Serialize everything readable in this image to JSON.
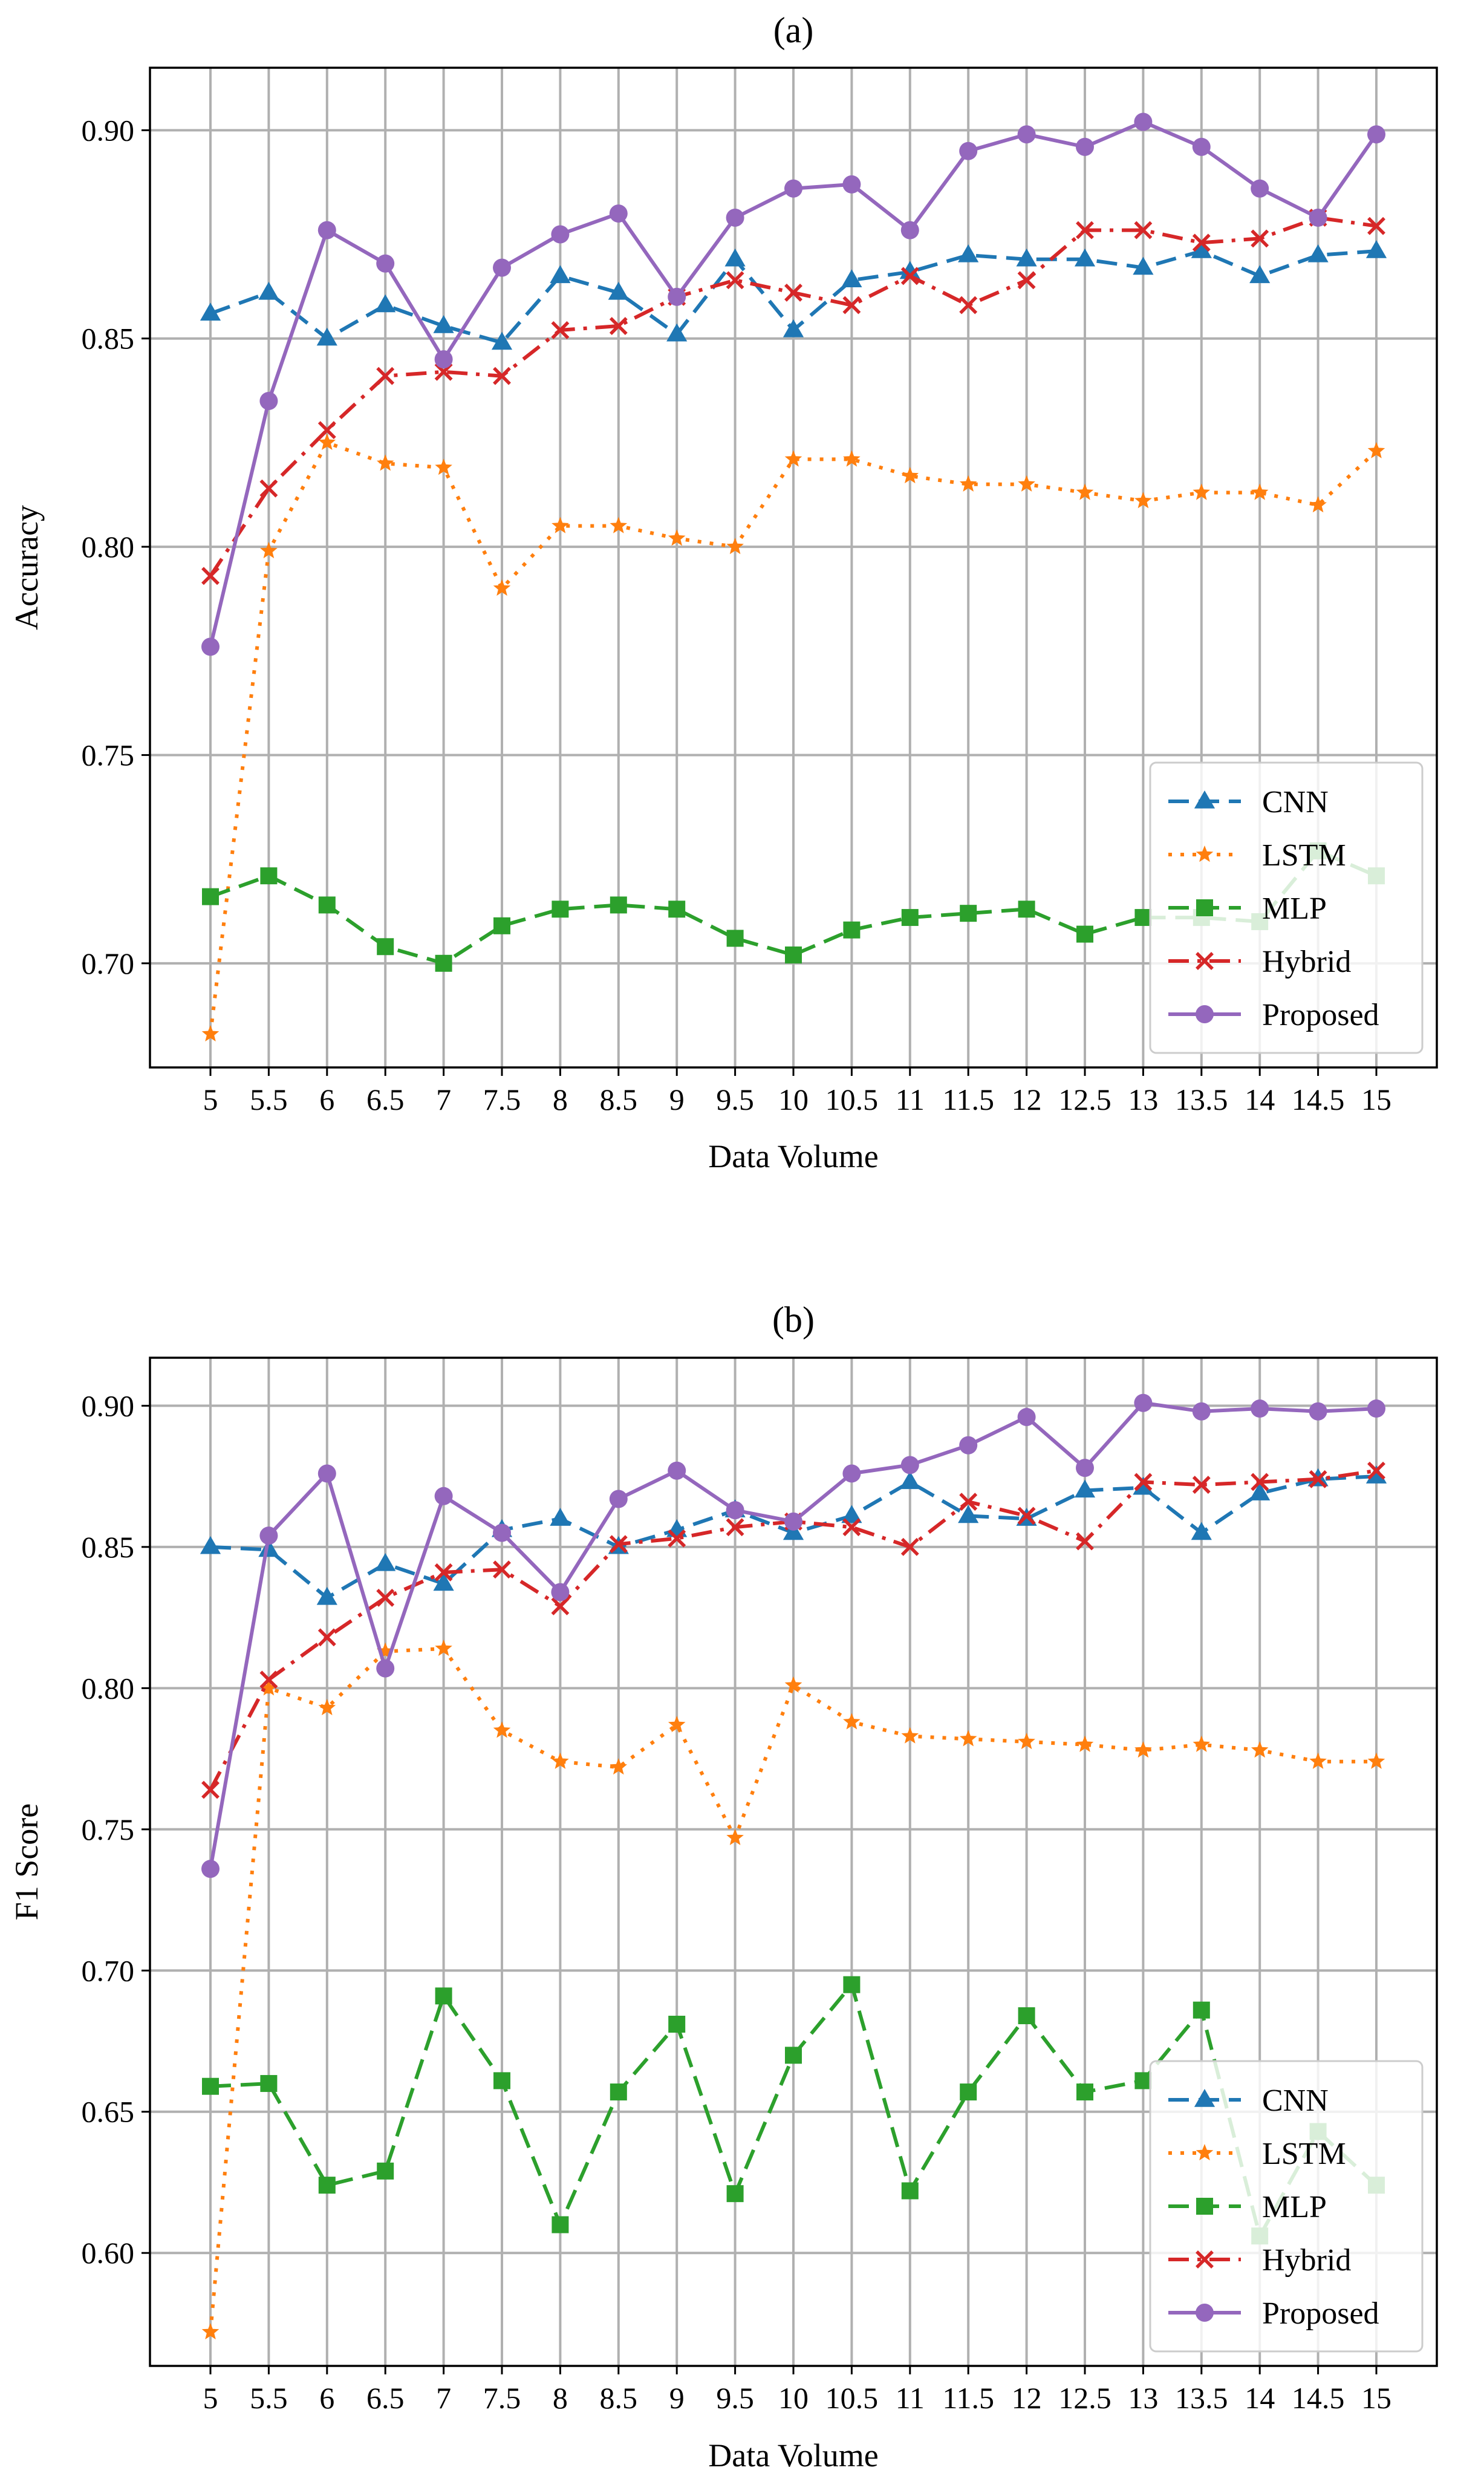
{
  "chart_data": [
    {
      "type": "line",
      "title": "(a)",
      "xlabel": "Data Volume",
      "ylabel": "Accuracy",
      "x": [
        "5",
        "5.5",
        "6",
        "6.5",
        "7",
        "7.5",
        "8",
        "8.5",
        "9",
        "9.5",
        "10",
        "10.5",
        "11",
        "11.5",
        "12",
        "12.5",
        "13",
        "13.5",
        "14",
        "14.5",
        "15"
      ],
      "ylim": [
        0.675,
        0.915
      ],
      "yticks": [
        "0.70",
        "0.75",
        "0.80",
        "0.85",
        "0.90"
      ],
      "grid": true,
      "legend_position": "lower right",
      "series": [
        {
          "name": "CNN",
          "color": "#1f77b4",
          "values": [
            0.856,
            0.861,
            0.85,
            0.858,
            0.853,
            0.849,
            0.865,
            0.861,
            0.851,
            0.869,
            0.852,
            0.864,
            0.866,
            0.87,
            0.869,
            0.869,
            0.867,
            0.871,
            0.865,
            0.87,
            0.871
          ]
        },
        {
          "name": "LSTM",
          "color": "#ff7f0e",
          "values": [
            0.683,
            0.799,
            0.825,
            0.82,
            0.819,
            0.79,
            0.805,
            0.805,
            0.802,
            0.8,
            0.821,
            0.821,
            0.817,
            0.815,
            0.815,
            0.813,
            0.811,
            0.813,
            0.813,
            0.81,
            0.823
          ]
        },
        {
          "name": "MLP",
          "color": "#2ca02c",
          "values": [
            0.716,
            0.721,
            0.714,
            0.704,
            0.7,
            0.709,
            0.713,
            0.714,
            0.713,
            0.706,
            0.702,
            0.708,
            0.711,
            0.712,
            0.713,
            0.707,
            0.711,
            0.711,
            0.71,
            0.727,
            0.721
          ]
        },
        {
          "name": "Hybrid",
          "color": "#d62728",
          "values": [
            0.793,
            0.814,
            0.828,
            0.841,
            0.842,
            0.841,
            0.852,
            0.853,
            0.86,
            0.864,
            0.861,
            0.858,
            0.865,
            0.858,
            0.864,
            0.876,
            0.876,
            0.873,
            0.874,
            0.879,
            0.877
          ]
        },
        {
          "name": "Proposed",
          "color": "#9467bd",
          "values": [
            0.776,
            0.835,
            0.876,
            0.868,
            0.845,
            0.867,
            0.875,
            0.88,
            0.86,
            0.879,
            0.886,
            0.887,
            0.876,
            0.895,
            0.899,
            0.896,
            0.902,
            0.896,
            0.886,
            0.879,
            0.899
          ]
        }
      ]
    },
    {
      "type": "line",
      "title": "(b)",
      "xlabel": "Data Volume",
      "ylabel": "F1 Score",
      "x": [
        "5",
        "5.5",
        "6",
        "6.5",
        "7",
        "7.5",
        "8",
        "8.5",
        "9",
        "9.5",
        "10",
        "10.5",
        "11",
        "11.5",
        "12",
        "12.5",
        "13",
        "13.5",
        "14",
        "14.5",
        "15"
      ],
      "ylim": [
        0.56,
        0.917
      ],
      "yticks": [
        "0.60",
        "0.65",
        "0.70",
        "0.75",
        "0.80",
        "0.85",
        "0.90"
      ],
      "grid": true,
      "legend_position": "lower right",
      "series": [
        {
          "name": "CNN",
          "color": "#1f77b4",
          "values": [
            0.85,
            0.849,
            0.832,
            0.844,
            0.837,
            0.856,
            0.86,
            0.85,
            0.856,
            0.863,
            0.855,
            0.861,
            0.873,
            0.861,
            0.86,
            0.87,
            0.871,
            0.855,
            0.869,
            0.874,
            0.875
          ]
        },
        {
          "name": "LSTM",
          "color": "#ff7f0e",
          "values": [
            0.572,
            0.8,
            0.793,
            0.813,
            0.814,
            0.785,
            0.774,
            0.772,
            0.787,
            0.747,
            0.801,
            0.788,
            0.783,
            0.782,
            0.781,
            0.78,
            0.778,
            0.78,
            0.778,
            0.774,
            0.774
          ]
        },
        {
          "name": "MLP",
          "color": "#2ca02c",
          "values": [
            0.659,
            0.66,
            0.624,
            0.629,
            0.691,
            0.661,
            0.61,
            0.657,
            0.681,
            0.621,
            0.67,
            0.695,
            0.622,
            0.657,
            0.684,
            0.657,
            0.661,
            0.686,
            0.606,
            0.643,
            0.624
          ]
        },
        {
          "name": "Hybrid",
          "color": "#d62728",
          "values": [
            0.764,
            0.803,
            0.818,
            0.832,
            0.841,
            0.842,
            0.829,
            0.851,
            0.853,
            0.857,
            0.859,
            0.857,
            0.85,
            0.866,
            0.861,
            0.852,
            0.873,
            0.872,
            0.873,
            0.874,
            0.877
          ]
        },
        {
          "name": "Proposed",
          "color": "#9467bd",
          "values": [
            0.736,
            0.854,
            0.876,
            0.807,
            0.868,
            0.855,
            0.834,
            0.867,
            0.877,
            0.863,
            0.859,
            0.876,
            0.879,
            0.886,
            0.896,
            0.878,
            0.901,
            0.898,
            0.899,
            0.898,
            0.899
          ]
        }
      ]
    }
  ]
}
